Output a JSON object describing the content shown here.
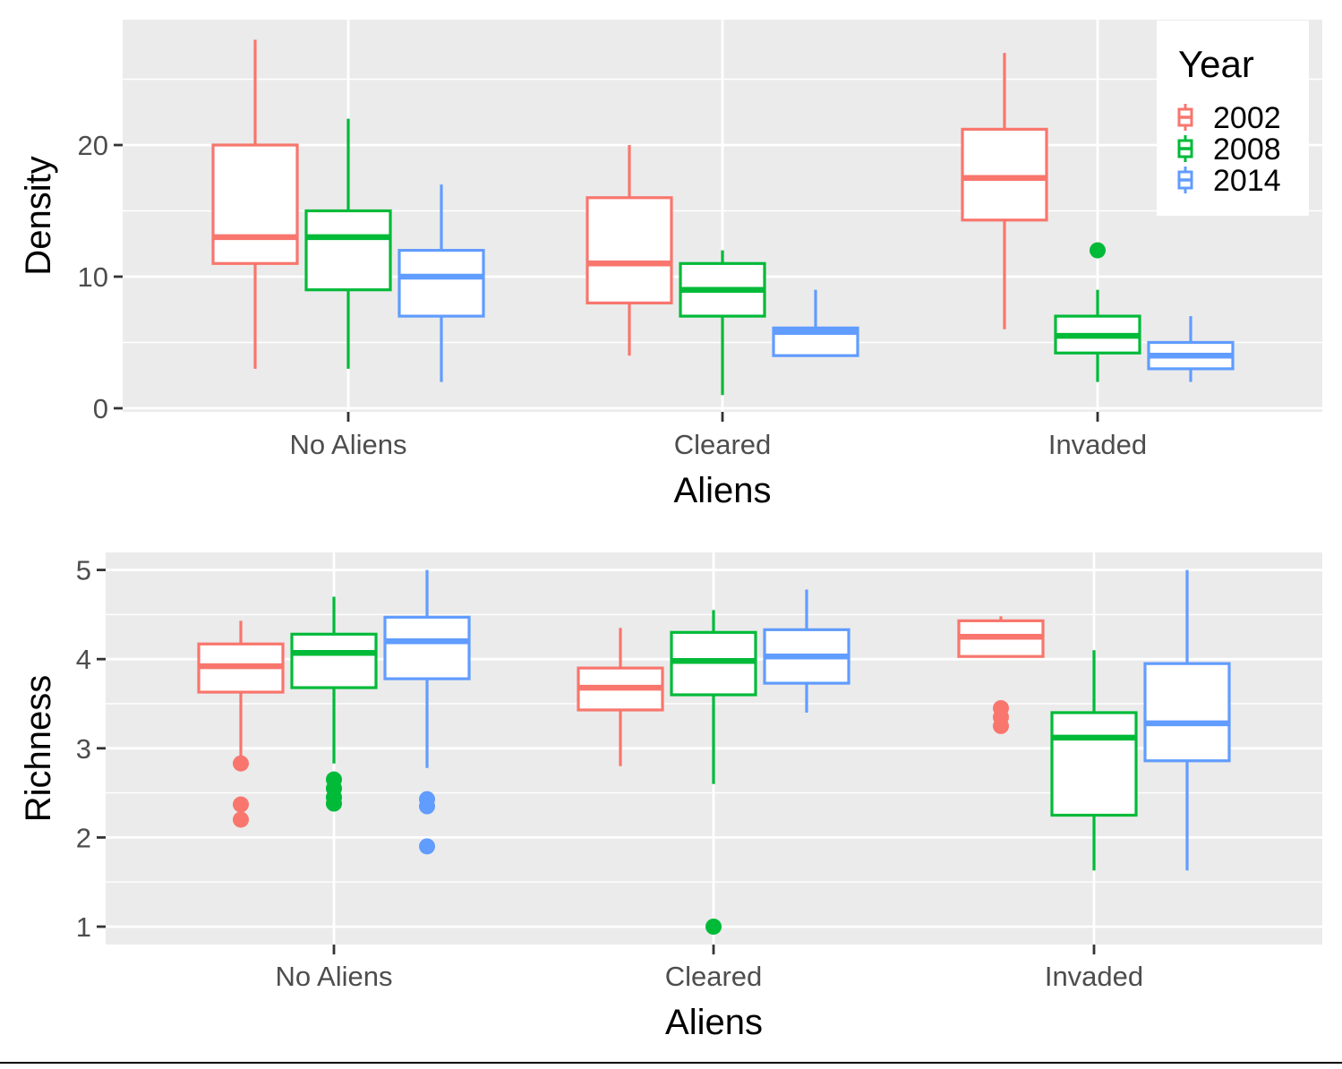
{
  "colors": {
    "panel_bg": "#ebebeb",
    "grid": "#ffffff",
    "tick": "#333333",
    "2002": "#F8766D",
    "2008": "#00BA38",
    "2014": "#619CFF"
  },
  "chart_data": [
    {
      "type": "boxplot",
      "xlabel": "Aliens",
      "ylabel": "Density",
      "ylim": [
        0,
        28
      ],
      "yticks": [
        "0",
        "10",
        "20"
      ],
      "categories": [
        "No Aliens",
        "Cleared",
        "Invaded"
      ],
      "grid": true,
      "series": [
        {
          "name": "2002",
          "boxes": [
            {
              "min": 3,
              "q1": 11,
              "median": 13,
              "q3": 20,
              "max": 28,
              "outliers": []
            },
            {
              "min": 4,
              "q1": 8,
              "median": 11,
              "q3": 16,
              "max": 20,
              "outliers": []
            },
            {
              "min": 6,
              "q1": 14.3,
              "median": 17.5,
              "q3": 21.2,
              "max": 27,
              "outliers": []
            }
          ]
        },
        {
          "name": "2008",
          "boxes": [
            {
              "min": 3,
              "q1": 9,
              "median": 13,
              "q3": 15,
              "max": 22,
              "outliers": []
            },
            {
              "min": 1,
              "q1": 7,
              "median": 9,
              "q3": 11,
              "max": 12,
              "outliers": []
            },
            {
              "min": 2,
              "q1": 4.2,
              "median": 5.5,
              "q3": 7,
              "max": 9,
              "outliers": [
                12
              ]
            }
          ]
        },
        {
          "name": "2014",
          "boxes": [
            {
              "min": 2,
              "q1": 7,
              "median": 10,
              "q3": 12,
              "max": 17,
              "outliers": []
            },
            {
              "min": 4,
              "q1": 4,
              "median": 5.8,
              "q3": 6.1,
              "max": 9,
              "outliers": []
            },
            {
              "min": 2,
              "q1": 3,
              "median": 4,
              "q3": 5,
              "max": 7,
              "outliers": []
            }
          ]
        }
      ]
    },
    {
      "type": "boxplot",
      "xlabel": "Aliens",
      "ylabel": "Richness",
      "ylim": [
        0.8,
        5
      ],
      "yticks": [
        "1",
        "2",
        "3",
        "4",
        "5"
      ],
      "categories": [
        "No Aliens",
        "Cleared",
        "Invaded"
      ],
      "grid": true,
      "series": [
        {
          "name": "2002",
          "boxes": [
            {
              "min": 2.9,
              "q1": 3.63,
              "median": 3.92,
              "q3": 4.17,
              "max": 4.43,
              "outliers": [
                2.83,
                2.37,
                2.2
              ]
            },
            {
              "min": 2.8,
              "q1": 3.43,
              "median": 3.68,
              "q3": 3.9,
              "max": 4.35,
              "outliers": []
            },
            {
              "min": 4.03,
              "q1": 4.03,
              "median": 4.25,
              "q3": 4.43,
              "max": 4.48,
              "outliers": [
                3.45,
                3.35,
                3.25
              ]
            }
          ]
        },
        {
          "name": "2008",
          "boxes": [
            {
              "min": 2.83,
              "q1": 3.68,
              "median": 4.07,
              "q3": 4.28,
              "max": 4.7,
              "outliers": [
                2.65,
                2.55,
                2.45,
                2.38
              ]
            },
            {
              "min": 2.6,
              "q1": 3.6,
              "median": 3.98,
              "q3": 4.3,
              "max": 4.55,
              "outliers": [
                1.0
              ]
            },
            {
              "min": 1.63,
              "q1": 2.25,
              "median": 3.12,
              "q3": 3.4,
              "max": 4.1,
              "outliers": []
            }
          ]
        },
        {
          "name": "2014",
          "boxes": [
            {
              "min": 2.78,
              "q1": 3.78,
              "median": 4.2,
              "q3": 4.47,
              "max": 5.0,
              "outliers": [
                2.43,
                2.35,
                1.9
              ]
            },
            {
              "min": 3.4,
              "q1": 3.73,
              "median": 4.03,
              "q3": 4.33,
              "max": 4.78,
              "outliers": []
            },
            {
              "min": 1.63,
              "q1": 2.86,
              "median": 3.28,
              "q3": 3.95,
              "max": 5.0,
              "outliers": []
            }
          ]
        }
      ]
    }
  ],
  "legend": {
    "title": "Year",
    "entries": [
      "2002",
      "2008",
      "2014"
    ],
    "placement": "top-right"
  }
}
